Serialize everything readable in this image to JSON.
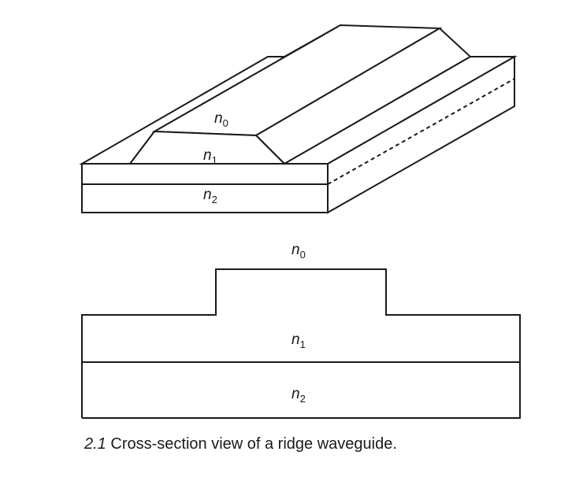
{
  "labels": {
    "iso_n0": {
      "base": "n",
      "sub": "0"
    },
    "iso_n1": {
      "base": "n",
      "sub": "1"
    },
    "iso_n2": {
      "base": "n",
      "sub": "2"
    },
    "cs_n0": {
      "base": "n",
      "sub": "0"
    },
    "cs_n1": {
      "base": "n",
      "sub": "1"
    },
    "cs_n2": {
      "base": "n",
      "sub": "2"
    }
  },
  "caption": {
    "number": "2.1",
    "text": "Cross-section view of a ridge waveguide."
  }
}
